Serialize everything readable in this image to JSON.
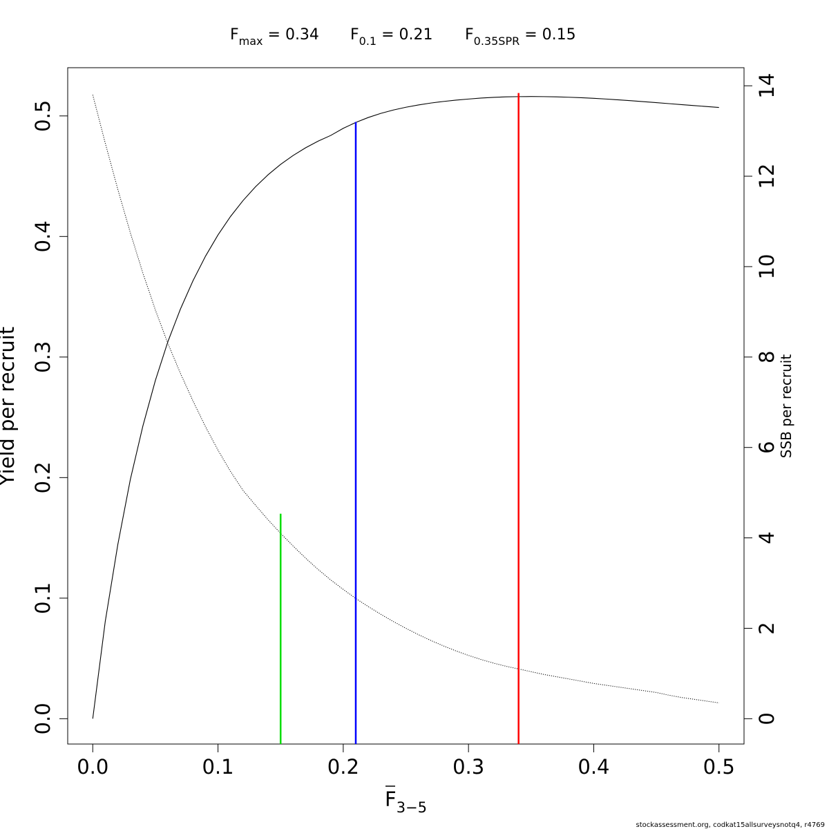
{
  "chart_data": {
    "type": "line",
    "title": {
      "fmax": {
        "main": "F",
        "sub": "max",
        "value": "= 0.34"
      },
      "f01": {
        "main": "F",
        "sub": "0.1",
        "value": "= 0.21"
      },
      "fspr": {
        "main": "F",
        "sub": "0.35SPR",
        "value": "= 0.15"
      }
    },
    "xlabel": {
      "main": "F",
      "sub": "3−5"
    },
    "ylabel": "Yield per recruit",
    "y2label": "SSB per recruit",
    "xlim": [
      -0.02,
      0.52
    ],
    "ylim": [
      -0.021,
      0.54
    ],
    "y2lim": [
      -0.56,
      14.4
    ],
    "x_ticks": [
      "0.0",
      "0.1",
      "0.2",
      "0.3",
      "0.4",
      "0.5"
    ],
    "y_ticks": [
      "0.0",
      "0.1",
      "0.2",
      "0.3",
      "0.4",
      "0.5"
    ],
    "y2_ticks": [
      "0",
      "2",
      "4",
      "6",
      "8",
      "10",
      "12",
      "14"
    ],
    "series": [
      {
        "name": "Yield per recruit",
        "axis": "left",
        "style": "solid",
        "x": [
          0,
          0.01,
          0.02,
          0.03,
          0.04,
          0.05,
          0.06,
          0.07,
          0.08,
          0.09,
          0.1,
          0.11,
          0.12,
          0.13,
          0.14,
          0.15,
          0.16,
          0.17,
          0.18,
          0.19,
          0.2,
          0.21,
          0.22,
          0.23,
          0.24,
          0.25,
          0.26,
          0.27,
          0.28,
          0.29,
          0.3,
          0.31,
          0.32,
          0.33,
          0.34,
          0.35,
          0.36,
          0.37,
          0.38,
          0.39,
          0.4,
          0.41,
          0.42,
          0.43,
          0.44,
          0.45,
          0.46,
          0.47,
          0.48,
          0.49,
          0.5
        ],
        "values": [
          0.0,
          0.0808,
          0.1444,
          0.1984,
          0.2427,
          0.2806,
          0.3128,
          0.3398,
          0.3632,
          0.3836,
          0.4013,
          0.4166,
          0.4298,
          0.4413,
          0.4512,
          0.4598,
          0.4672,
          0.4736,
          0.4791,
          0.4838,
          0.4897,
          0.4946,
          0.4987,
          0.5021,
          0.5049,
          0.5072,
          0.5091,
          0.5107,
          0.512,
          0.5131,
          0.514,
          0.5148,
          0.5154,
          0.5158,
          0.516,
          0.5161,
          0.516,
          0.5158,
          0.5155,
          0.5151,
          0.5146,
          0.514,
          0.5133,
          0.5126,
          0.5118,
          0.511,
          0.5102,
          0.5094,
          0.5086,
          0.5078,
          0.507
        ]
      },
      {
        "name": "SSB per recruit",
        "axis": "right",
        "style": "dotted",
        "x": [
          0,
          0.01,
          0.02,
          0.03,
          0.04,
          0.05,
          0.06,
          0.07,
          0.08,
          0.09,
          0.1,
          0.11,
          0.12,
          0.13,
          0.14,
          0.15,
          0.16,
          0.17,
          0.18,
          0.19,
          0.2,
          0.21,
          0.22,
          0.23,
          0.24,
          0.25,
          0.26,
          0.27,
          0.28,
          0.29,
          0.3,
          0.31,
          0.32,
          0.33,
          0.34,
          0.35,
          0.36,
          0.37,
          0.38,
          0.39,
          0.4,
          0.41,
          0.42,
          0.43,
          0.44,
          0.45,
          0.46,
          0.47,
          0.48,
          0.49,
          0.5
        ],
        "values": [
          13.8,
          12.73,
          11.71,
          10.75,
          9.86,
          9.04,
          8.3,
          7.64,
          7.03,
          6.46,
          5.94,
          5.47,
          5.05,
          4.72,
          4.4,
          4.1,
          3.82,
          3.55,
          3.3,
          3.07,
          2.86,
          2.66,
          2.48,
          2.31,
          2.15,
          2.0,
          1.86,
          1.73,
          1.61,
          1.5,
          1.4,
          1.31,
          1.23,
          1.16,
          1.1,
          1.04,
          0.98,
          0.93,
          0.88,
          0.83,
          0.78,
          0.74,
          0.7,
          0.66,
          0.62,
          0.58,
          0.52,
          0.47,
          0.43,
          0.39,
          0.35
        ]
      }
    ],
    "reference_lines": [
      {
        "label": "F0.35SPR",
        "x": 0.15,
        "axis": "left",
        "ymax": 0.17,
        "color": "#00dd00"
      },
      {
        "label": "F0.1",
        "x": 0.21,
        "axis": "left",
        "ymax": 0.495,
        "color": "#0000ff"
      },
      {
        "label": "Fmax",
        "x": 0.34,
        "axis": "left",
        "ymax": 0.519,
        "color": "#ff0000"
      }
    ],
    "grid": false,
    "legend": "none"
  },
  "footer": "stockassessment.org, codkat15allsurveysnotq4, r4769"
}
